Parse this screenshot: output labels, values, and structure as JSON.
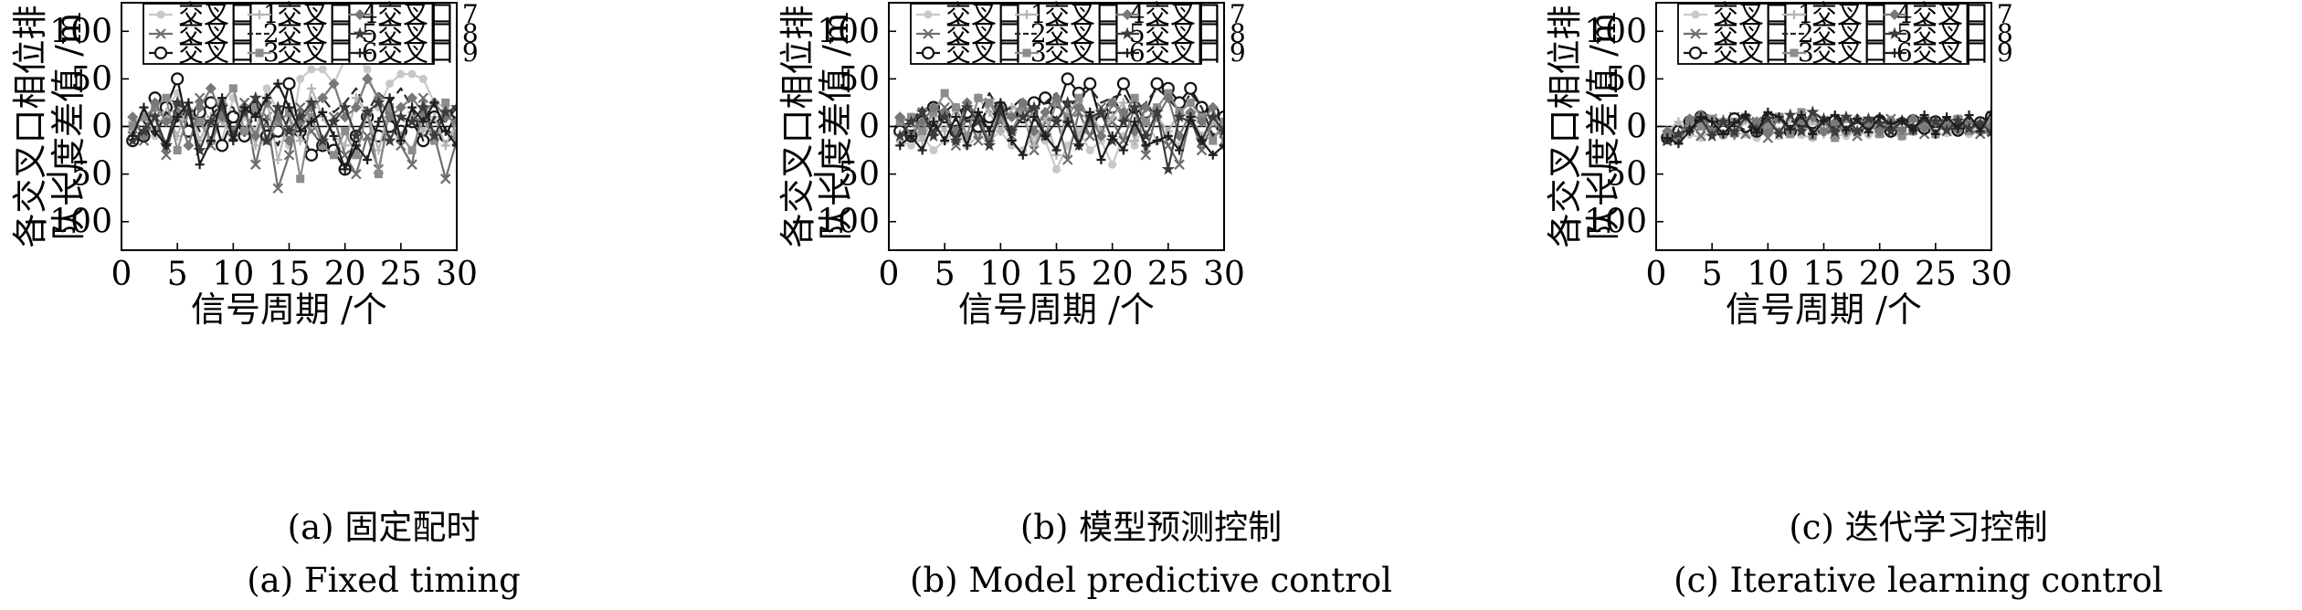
{
  "figure": {
    "panels": [
      {
        "caption_cn": "(a) 固定配时",
        "caption_en": "(a) Fixed timing"
      },
      {
        "caption_cn": "(b) 模型预测控制",
        "caption_en": "(b) Model predictive control"
      },
      {
        "caption_cn": "(c) 迭代学习控制",
        "caption_en": "(c) Iterative learning control"
      }
    ]
  },
  "chart_data": [
    {
      "type": "line",
      "title": "",
      "xlabel": "信号周期 /个",
      "ylabel": [
        "各交叉口相位排",
        "队长度差值 /m"
      ],
      "xlim": [
        0,
        30
      ],
      "ylim": [
        -130,
        130
      ],
      "xticks": [
        0,
        5,
        10,
        15,
        20,
        25,
        30
      ],
      "yticks": [
        100,
        50,
        0,
        -50,
        -100
      ],
      "grid": false,
      "legend_position": "top",
      "x": [
        1,
        2,
        3,
        4,
        5,
        6,
        7,
        8,
        9,
        10,
        11,
        12,
        13,
        14,
        15,
        16,
        17,
        18,
        19,
        20,
        21,
        22,
        23,
        24,
        25,
        26,
        27,
        28,
        29,
        30
      ],
      "series": [
        {
          "name": "交叉口 1",
          "color": "#c8c8c8",
          "marker": "dot",
          "values": [
            -5,
            12,
            -10,
            20,
            35,
            -8,
            25,
            5,
            -15,
            30,
            10,
            -5,
            40,
            15,
            -20,
            50,
            60,
            60,
            45,
            70,
            75,
            60,
            20,
            45,
            55,
            55,
            50,
            25,
            20,
            10
          ]
        },
        {
          "name": "交叉口 2",
          "color": "#6e6e6e",
          "marker": "x",
          "values": [
            -10,
            -15,
            10,
            -30,
            20,
            -5,
            30,
            -20,
            15,
            -10,
            25,
            -40,
            10,
            -65,
            -30,
            20,
            -5,
            -20,
            10,
            -30,
            -50,
            -10,
            -45,
            10,
            -20,
            -40,
            30,
            -10,
            -55,
            -15
          ]
        },
        {
          "name": "交叉口 3",
          "color": "#141414",
          "marker": "circle",
          "values": [
            -15,
            -10,
            30,
            20,
            50,
            -5,
            15,
            25,
            -20,
            10,
            -10,
            20,
            -10,
            -5,
            45,
            -5,
            -30,
            -20,
            -25,
            -45,
            -10,
            10,
            -10,
            0,
            -5,
            5,
            -15,
            10,
            -10,
            15
          ]
        },
        {
          "name": "交叉口 4",
          "color": "#b4b4b4",
          "marker": "plus",
          "values": [
            5,
            10,
            -5,
            15,
            -10,
            25,
            -15,
            10,
            5,
            -10,
            20,
            -20,
            30,
            -35,
            10,
            -15,
            40,
            10,
            -10,
            -20,
            30,
            15,
            -25,
            20,
            -10,
            15,
            -5,
            10,
            -20,
            5
          ]
        },
        {
          "name": "交叉口 5",
          "color": "#282828",
          "marker": "none",
          "dashed": true,
          "values": [
            -5,
            5,
            -10,
            15,
            5,
            20,
            -5,
            10,
            25,
            20,
            -10,
            15,
            5,
            -20,
            10,
            5,
            20,
            30,
            15,
            25,
            40,
            15,
            35,
            25,
            40,
            20,
            -15,
            10,
            5,
            20
          ]
        },
        {
          "name": "交叉口 6",
          "color": "#8c8c8c",
          "marker": "square",
          "values": [
            0,
            10,
            20,
            30,
            -25,
            15,
            5,
            -15,
            25,
            40,
            -5,
            20,
            -15,
            5,
            15,
            -55,
            10,
            -20,
            -30,
            -5,
            -30,
            15,
            -50,
            20,
            -10,
            -25,
            10,
            -15,
            25,
            -10
          ]
        },
        {
          "name": "交叉口 7",
          "color": "#787878",
          "marker": "diamond",
          "values": [
            10,
            -10,
            25,
            5,
            15,
            -20,
            20,
            40,
            10,
            -5,
            15,
            -10,
            25,
            10,
            -15,
            5,
            20,
            30,
            45,
            10,
            20,
            50,
            30,
            10,
            20,
            30,
            15,
            25,
            10,
            5
          ]
        },
        {
          "name": "交叉口 8",
          "color": "#3c3c3c",
          "marker": "star",
          "values": [
            -15,
            -5,
            10,
            -20,
            25,
            15,
            -25,
            5,
            20,
            -10,
            15,
            30,
            -15,
            20,
            -5,
            10,
            25,
            -15,
            5,
            20,
            -10,
            15,
            25,
            -15,
            10,
            5,
            20,
            -10,
            15,
            20
          ]
        },
        {
          "name": "交叉口 9",
          "color": "#1e1e1e",
          "marker": "plus",
          "values": [
            -10,
            20,
            -5,
            -20,
            10,
            25,
            -40,
            -15,
            30,
            -15,
            20,
            10,
            30,
            45,
            20,
            -5,
            5,
            15,
            -10,
            -45,
            -20,
            -35,
            5,
            30,
            -15,
            20,
            5,
            25,
            -5,
            -20
          ]
        }
      ]
    },
    {
      "type": "line",
      "title": "",
      "xlabel": "信号周期 /个",
      "ylabel": [
        "各交叉口相位排",
        "队长度差值 /m"
      ],
      "xlim": [
        0,
        30
      ],
      "ylim": [
        -130,
        130
      ],
      "xticks": [
        0,
        5,
        10,
        15,
        20,
        25,
        30
      ],
      "yticks": [
        100,
        50,
        0,
        -50,
        -100
      ],
      "grid": false,
      "legend_position": "top",
      "x": [
        1,
        2,
        3,
        4,
        5,
        6,
        7,
        8,
        9,
        10,
        11,
        12,
        13,
        14,
        15,
        16,
        17,
        18,
        19,
        20,
        21,
        22,
        23,
        24,
        25,
        26,
        27,
        28,
        29,
        30
      ],
      "series": [
        {
          "name": "交叉口 1",
          "color": "#c8c8c8",
          "marker": "dot",
          "values": [
            -15,
            -20,
            -10,
            -25,
            -15,
            -5,
            -20,
            -10,
            -15,
            -5,
            -20,
            -25,
            -10,
            -15,
            -45,
            -20,
            -5,
            -25,
            -15,
            -40,
            -10,
            -20,
            5,
            -15,
            -10,
            -20,
            5,
            -15,
            -10,
            -5
          ]
        },
        {
          "name": "交叉口 2",
          "color": "#6e6e6e",
          "marker": "x",
          "values": [
            5,
            -10,
            15,
            -5,
            20,
            -20,
            10,
            -15,
            25,
            5,
            -10,
            15,
            -25,
            5,
            10,
            -35,
            15,
            -10,
            20,
            5,
            -15,
            20,
            -30,
            15,
            -20,
            -40,
            10,
            -25,
            5,
            -15
          ]
        },
        {
          "name": "交叉口 3",
          "color": "#141414",
          "marker": "circle",
          "values": [
            -5,
            -10,
            5,
            20,
            10,
            -5,
            15,
            0,
            10,
            20,
            15,
            10,
            25,
            30,
            15,
            50,
            35,
            45,
            5,
            20,
            45,
            20,
            15,
            45,
            40,
            25,
            40,
            20,
            15,
            10
          ]
        },
        {
          "name": "交叉口 4",
          "color": "#b4b4b4",
          "marker": "plus",
          "values": [
            -10,
            5,
            -15,
            10,
            -5,
            20,
            -10,
            30,
            15,
            -5,
            20,
            15,
            -20,
            10,
            -30,
            20,
            -10,
            15,
            -5,
            10,
            25,
            -15,
            20,
            10,
            -5,
            15,
            10,
            -10,
            5,
            -5
          ]
        },
        {
          "name": "交叉口 5",
          "color": "#282828",
          "marker": "none",
          "dashed": true,
          "values": [
            0,
            5,
            20,
            -5,
            15,
            25,
            5,
            10,
            35,
            15,
            20,
            30,
            15,
            25,
            35,
            20,
            30,
            40,
            25,
            30,
            35,
            15,
            25,
            40,
            30,
            15,
            35,
            20,
            -10,
            10
          ]
        },
        {
          "name": "交叉口 6",
          "color": "#8c8c8c",
          "marker": "square",
          "values": [
            5,
            10,
            -5,
            15,
            35,
            20,
            -10,
            30,
            25,
            10,
            -5,
            20,
            15,
            -10,
            25,
            10,
            30,
            5,
            15,
            25,
            10,
            30,
            5,
            20,
            35,
            15,
            25,
            10,
            -15,
            5
          ]
        },
        {
          "name": "交叉口 7",
          "color": "#787878",
          "marker": "diamond",
          "values": [
            10,
            -10,
            5,
            20,
            15,
            -5,
            25,
            10,
            -15,
            20,
            10,
            25,
            -5,
            15,
            30,
            5,
            20,
            10,
            -10,
            25,
            15,
            -5,
            20,
            10,
            30,
            -10,
            15,
            5,
            20,
            -20
          ]
        },
        {
          "name": "交叉口 8",
          "color": "#3c3c3c",
          "marker": "star",
          "values": [
            -10,
            5,
            15,
            -10,
            10,
            -15,
            20,
            5,
            -20,
            15,
            -5,
            10,
            20,
            -10,
            5,
            25,
            -20,
            10,
            15,
            -15,
            5,
            20,
            -10,
            15,
            -45,
            10,
            5,
            -15,
            10,
            -5
          ]
        },
        {
          "name": "交叉口 9",
          "color": "#1e1e1e",
          "marker": "plus",
          "values": [
            -20,
            -10,
            -25,
            5,
            -15,
            10,
            -20,
            15,
            -5,
            25,
            -15,
            -30,
            10,
            -10,
            -25,
            5,
            -20,
            15,
            -35,
            -10,
            -25,
            5,
            -20,
            -15,
            -10,
            -25,
            10,
            -15,
            -30,
            -20
          ]
        }
      ]
    },
    {
      "type": "line",
      "title": "",
      "xlabel": "信号周期 /个",
      "ylabel": [
        "各交叉口相位排",
        "队长度差值 /m"
      ],
      "xlim": [
        0,
        30
      ],
      "ylim": [
        -130,
        130
      ],
      "xticks": [
        0,
        5,
        10,
        15,
        20,
        25,
        30
      ],
      "yticks": [
        100,
        50,
        0,
        -50,
        -100
      ],
      "grid": false,
      "legend_position": "top",
      "x": [
        1,
        2,
        3,
        4,
        5,
        6,
        7,
        8,
        9,
        10,
        11,
        12,
        13,
        14,
        15,
        16,
        17,
        18,
        19,
        20,
        21,
        22,
        23,
        24,
        25,
        26,
        27,
        28,
        29,
        30
      ],
      "series": [
        {
          "name": "交叉口 1",
          "color": "#c8c8c8",
          "marker": "dot",
          "values": [
            -10,
            -5,
            -8,
            -12,
            -5,
            -10,
            -6,
            -8,
            -12,
            -4,
            -10,
            -6,
            -9,
            -12,
            -5,
            -8,
            -10,
            -6,
            -9,
            -5,
            -8,
            -11,
            -6,
            -4,
            -9,
            -7,
            -5,
            -8,
            -6,
            -3
          ]
        },
        {
          "name": "交叉口 2",
          "color": "#6e6e6e",
          "marker": "x",
          "values": [
            -15,
            -8,
            5,
            -10,
            8,
            -5,
            10,
            -8,
            5,
            -12,
            8,
            -5,
            10,
            -3,
            6,
            -8,
            4,
            -10,
            5,
            -6,
            8,
            -4,
            6,
            -8,
            3,
            -5,
            6,
            -3,
            -8,
            -5
          ]
        },
        {
          "name": "交叉口 3",
          "color": "#141414",
          "marker": "circle",
          "values": [
            -12,
            -5,
            5,
            10,
            5,
            -5,
            8,
            0,
            -5,
            8,
            3,
            -5,
            6,
            4,
            -3,
            6,
            5,
            -2,
            4,
            6,
            -5,
            3,
            6,
            -2,
            5,
            3,
            -4,
            2,
            4,
            10
          ]
        },
        {
          "name": "交叉口 4",
          "color": "#b4b4b4",
          "marker": "plus",
          "values": [
            -5,
            5,
            -8,
            10,
            -5,
            8,
            -10,
            6,
            -3,
            10,
            -5,
            8,
            -6,
            5,
            -8,
            6,
            -4,
            8,
            -6,
            5,
            -3,
            6,
            -5,
            4,
            -6,
            5,
            -2,
            4,
            -3,
            2
          ]
        },
        {
          "name": "交叉口 5",
          "color": "#282828",
          "marker": "none",
          "dashed": true,
          "values": [
            -8,
            0,
            -5,
            5,
            -3,
            6,
            2,
            -4,
            8,
            3,
            -5,
            6,
            2,
            -3,
            5,
            -2,
            6,
            -4,
            3,
            5,
            -3,
            4,
            2,
            -5,
            3,
            4,
            -2,
            3,
            -1,
            2
          ]
        },
        {
          "name": "交叉口 6",
          "color": "#8c8c8c",
          "marker": "square",
          "values": [
            -10,
            -15,
            5,
            0,
            8,
            -8,
            5,
            10,
            -5,
            3,
            10,
            -8,
            15,
            -10,
            5,
            -12,
            8,
            -6,
            4,
            -8,
            5,
            -10,
            -5,
            6,
            -8,
            4,
            8,
            -5,
            3,
            5
          ]
        },
        {
          "name": "交叉口 7",
          "color": "#787878",
          "marker": "diamond",
          "values": [
            -5,
            -10,
            8,
            12,
            -5,
            5,
            -8,
            10,
            5,
            -6,
            8,
            -4,
            6,
            10,
            -5,
            4,
            -6,
            8,
            3,
            -5,
            6,
            -4,
            8,
            -2,
            5,
            3,
            -4,
            5,
            2,
            0
          ]
        },
        {
          "name": "交叉口 8",
          "color": "#3c3c3c",
          "marker": "star",
          "values": [
            -15,
            -8,
            -3,
            8,
            -10,
            5,
            -6,
            10,
            -4,
            8,
            -8,
            12,
            -5,
            15,
            8,
            -6,
            10,
            -5,
            8,
            3,
            -5,
            6,
            -3,
            8,
            5,
            -4,
            6,
            -2,
            3,
            -6
          ]
        },
        {
          "name": "交叉口 9",
          "color": "#1e1e1e",
          "marker": "plus",
          "values": [
            -12,
            -18,
            -5,
            10,
            5,
            -8,
            4,
            12,
            -6,
            15,
            10,
            -3,
            12,
            -8,
            6,
            12,
            -4,
            8,
            -6,
            10,
            3,
            6,
            -4,
            12,
            -8,
            10,
            -2,
            12,
            -5,
            15
          ]
        }
      ]
    }
  ]
}
